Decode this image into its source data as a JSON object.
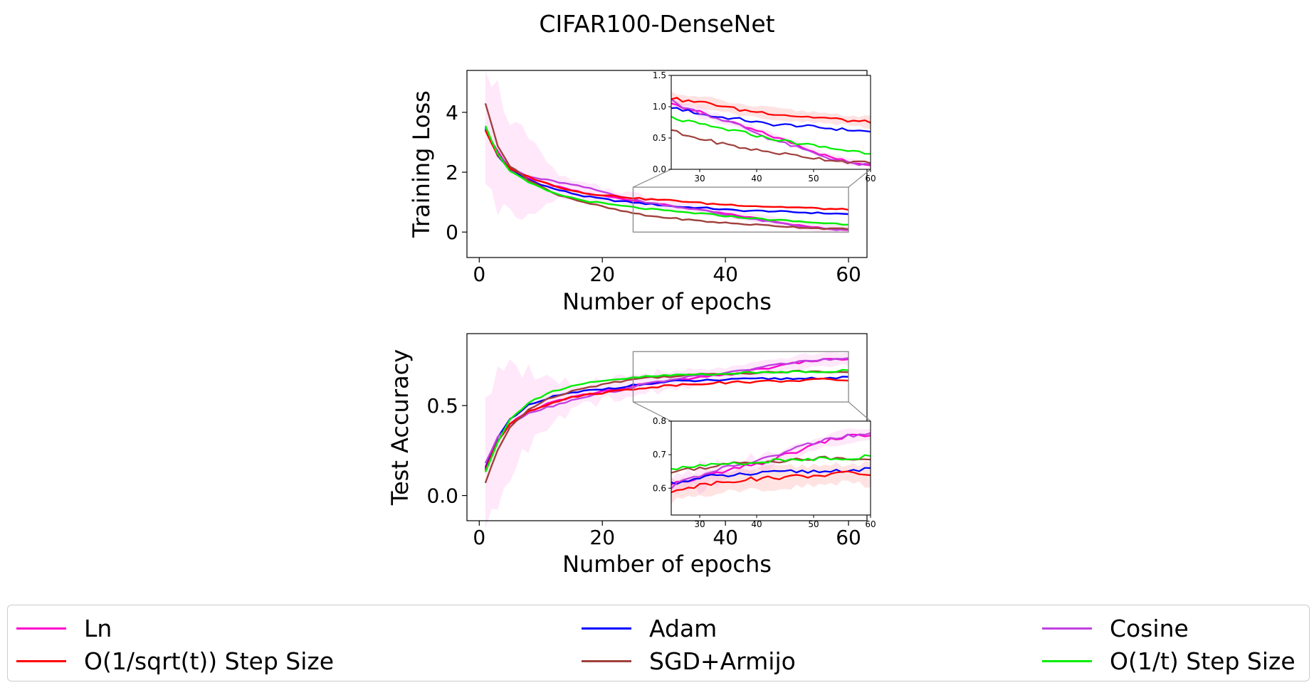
{
  "figure_title": "CIFAR100-DenseNet",
  "legend": [
    {
      "label": "Ln",
      "color": "#ff00cc"
    },
    {
      "label": "Adam",
      "color": "#0000ff"
    },
    {
      "label": "Cosine",
      "color": "#bf40e0"
    },
    {
      "label": "O(1/sqrt(t)) Step Size",
      "color": "#ff0000"
    },
    {
      "label": "SGD+Armijo",
      "color": "#a0403c"
    },
    {
      "label": "O(1/t) Step Size",
      "color": "#00ee00"
    }
  ],
  "chart_data": [
    {
      "type": "line",
      "xlabel": "Number of epochs",
      "ylabel": "Training Loss",
      "xlim": [
        -2,
        63
      ],
      "ylim": [
        -0.85,
        5.4
      ],
      "xticks": [
        0,
        20,
        40,
        60
      ],
      "yticks": [
        0,
        2,
        4
      ],
      "zoom_region": {
        "x": [
          25,
          60
        ],
        "y": [
          0.0,
          1.5
        ]
      },
      "inset": {
        "xticks": [
          30,
          40,
          50,
          60
        ],
        "yticks": [
          0.0,
          0.5,
          1.0,
          1.5
        ],
        "xlim": [
          25,
          60
        ],
        "ylim": [
          0.0,
          1.5
        ]
      },
      "series": [
        {
          "name": "Ln",
          "anchors": [
            [
              1,
              3.4
            ],
            [
              3,
              2.7
            ],
            [
              5,
              2.1
            ],
            [
              8,
              1.8
            ],
            [
              12,
              1.55
            ],
            [
              17,
              1.3
            ],
            [
              22,
              1.15
            ],
            [
              27,
              1.0
            ],
            [
              32,
              0.85
            ],
            [
              37,
              0.7
            ],
            [
              42,
              0.55
            ],
            [
              47,
              0.4
            ],
            [
              52,
              0.22
            ],
            [
              56,
              0.12
            ],
            [
              60,
              0.08
            ]
          ]
        },
        {
          "name": "Adam",
          "anchors": [
            [
              1,
              3.45
            ],
            [
              3,
              2.55
            ],
            [
              5,
              2.1
            ],
            [
              8,
              1.75
            ],
            [
              12,
              1.45
            ],
            [
              17,
              1.2
            ],
            [
              22,
              1.05
            ],
            [
              27,
              0.95
            ],
            [
              32,
              0.85
            ],
            [
              37,
              0.8
            ],
            [
              42,
              0.72
            ],
            [
              47,
              0.7
            ],
            [
              52,
              0.66
            ],
            [
              56,
              0.63
            ],
            [
              60,
              0.6
            ]
          ]
        },
        {
          "name": "Cosine",
          "anchors": [
            [
              1,
              3.5
            ],
            [
              3,
              2.6
            ],
            [
              5,
              2.15
            ],
            [
              8,
              1.85
            ],
            [
              12,
              1.7
            ],
            [
              17,
              1.5
            ],
            [
              22,
              1.25
            ],
            [
              27,
              1.0
            ],
            [
              32,
              0.85
            ],
            [
              37,
              0.7
            ],
            [
              42,
              0.5
            ],
            [
              47,
              0.35
            ],
            [
              52,
              0.2
            ],
            [
              56,
              0.1
            ],
            [
              60,
              0.06
            ]
          ]
        },
        {
          "name": "O(1/sqrt(t)) Step Size",
          "anchors": [
            [
              1,
              3.4
            ],
            [
              3,
              2.55
            ],
            [
              5,
              2.1
            ],
            [
              8,
              1.85
            ],
            [
              12,
              1.55
            ],
            [
              17,
              1.3
            ],
            [
              22,
              1.2
            ],
            [
              27,
              1.1
            ],
            [
              32,
              1.05
            ],
            [
              37,
              0.95
            ],
            [
              42,
              0.9
            ],
            [
              47,
              0.85
            ],
            [
              52,
              0.82
            ],
            [
              56,
              0.78
            ],
            [
              60,
              0.75
            ]
          ]
        },
        {
          "name": "SGD+Armijo",
          "anchors": [
            [
              1,
              4.3
            ],
            [
              3,
              2.9
            ],
            [
              5,
              2.2
            ],
            [
              8,
              1.75
            ],
            [
              12,
              1.3
            ],
            [
              17,
              1.0
            ],
            [
              22,
              0.75
            ],
            [
              27,
              0.55
            ],
            [
              32,
              0.45
            ],
            [
              37,
              0.35
            ],
            [
              42,
              0.28
            ],
            [
              47,
              0.22
            ],
            [
              52,
              0.16
            ],
            [
              56,
              0.12
            ],
            [
              60,
              0.1
            ]
          ]
        },
        {
          "name": "O(1/t) Step Size",
          "anchors": [
            [
              1,
              3.55
            ],
            [
              3,
              2.6
            ],
            [
              5,
              2.05
            ],
            [
              8,
              1.65
            ],
            [
              12,
              1.3
            ],
            [
              17,
              1.05
            ],
            [
              22,
              0.9
            ],
            [
              27,
              0.78
            ],
            [
              32,
              0.68
            ],
            [
              37,
              0.6
            ],
            [
              42,
              0.5
            ],
            [
              47,
              0.42
            ],
            [
              52,
              0.35
            ],
            [
              56,
              0.3
            ],
            [
              60,
              0.26
            ]
          ]
        }
      ]
    },
    {
      "type": "line",
      "xlabel": "Number of epochs",
      "ylabel": "Test Accuracy",
      "xlim": [
        -2,
        63
      ],
      "ylim": [
        -0.14,
        0.9
      ],
      "xticks": [
        0,
        20,
        40,
        60
      ],
      "yticks": [
        0.0,
        0.5
      ],
      "zoom_region": {
        "x": [
          25,
          60
        ],
        "y": [
          0.52,
          0.8
        ]
      },
      "inset": {
        "xticks": [
          30,
          40,
          50,
          60
        ],
        "yticks": [
          0.6,
          0.7,
          0.8
        ],
        "xlim": [
          25,
          60
        ],
        "ylim": [
          0.52,
          0.8
        ]
      },
      "inset_extra_ticks": [
        {
          "label": "40",
          "x": 40
        },
        {
          "label": "60",
          "x": 60
        }
      ],
      "series": [
        {
          "name": "Ln",
          "anchors": [
            [
              1,
              0.16
            ],
            [
              3,
              0.3
            ],
            [
              5,
              0.4
            ],
            [
              8,
              0.47
            ],
            [
              12,
              0.52
            ],
            [
              17,
              0.56
            ],
            [
              22,
              0.59
            ],
            [
              27,
              0.62
            ],
            [
              32,
              0.64
            ],
            [
              37,
              0.66
            ],
            [
              42,
              0.68
            ],
            [
              47,
              0.71
            ],
            [
              52,
              0.74
            ],
            [
              56,
              0.755
            ],
            [
              60,
              0.76
            ]
          ]
        },
        {
          "name": "Adam",
          "anchors": [
            [
              1,
              0.15
            ],
            [
              3,
              0.32
            ],
            [
              5,
              0.42
            ],
            [
              8,
              0.5
            ],
            [
              12,
              0.55
            ],
            [
              17,
              0.58
            ],
            [
              22,
              0.6
            ],
            [
              27,
              0.62
            ],
            [
              32,
              0.635
            ],
            [
              37,
              0.64
            ],
            [
              42,
              0.645
            ],
            [
              47,
              0.65
            ],
            [
              52,
              0.65
            ],
            [
              56,
              0.655
            ],
            [
              60,
              0.655
            ]
          ]
        },
        {
          "name": "Cosine",
          "anchors": [
            [
              1,
              0.18
            ],
            [
              3,
              0.32
            ],
            [
              5,
              0.4
            ],
            [
              8,
              0.46
            ],
            [
              12,
              0.5
            ],
            [
              17,
              0.55
            ],
            [
              22,
              0.58
            ],
            [
              27,
              0.62
            ],
            [
              32,
              0.65
            ],
            [
              37,
              0.67
            ],
            [
              42,
              0.69
            ],
            [
              47,
              0.72
            ],
            [
              52,
              0.745
            ],
            [
              56,
              0.755
            ],
            [
              60,
              0.76
            ]
          ]
        },
        {
          "name": "O(1/sqrt(t)) Step Size",
          "anchors": [
            [
              1,
              0.14
            ],
            [
              3,
              0.3
            ],
            [
              5,
              0.4
            ],
            [
              8,
              0.47
            ],
            [
              12,
              0.52
            ],
            [
              17,
              0.56
            ],
            [
              22,
              0.58
            ],
            [
              27,
              0.6
            ],
            [
              32,
              0.615
            ],
            [
              37,
              0.625
            ],
            [
              42,
              0.63
            ],
            [
              47,
              0.635
            ],
            [
              52,
              0.64
            ],
            [
              56,
              0.645
            ],
            [
              60,
              0.64
            ]
          ]
        },
        {
          "name": "SGD+Armijo",
          "anchors": [
            [
              1,
              0.07
            ],
            [
              3,
              0.25
            ],
            [
              5,
              0.38
            ],
            [
              8,
              0.48
            ],
            [
              12,
              0.55
            ],
            [
              17,
              0.6
            ],
            [
              22,
              0.63
            ],
            [
              27,
              0.655
            ],
            [
              32,
              0.665
            ],
            [
              37,
              0.675
            ],
            [
              42,
              0.68
            ],
            [
              47,
              0.685
            ],
            [
              52,
              0.69
            ],
            [
              56,
              0.69
            ],
            [
              60,
              0.69
            ]
          ]
        },
        {
          "name": "O(1/t) Step Size",
          "anchors": [
            [
              1,
              0.13
            ],
            [
              3,
              0.3
            ],
            [
              5,
              0.42
            ],
            [
              8,
              0.52
            ],
            [
              12,
              0.58
            ],
            [
              17,
              0.62
            ],
            [
              22,
              0.645
            ],
            [
              27,
              0.66
            ],
            [
              32,
              0.67
            ],
            [
              37,
              0.675
            ],
            [
              42,
              0.68
            ],
            [
              47,
              0.685
            ],
            [
              52,
              0.69
            ],
            [
              56,
              0.69
            ],
            [
              60,
              0.695
            ]
          ]
        }
      ]
    }
  ]
}
